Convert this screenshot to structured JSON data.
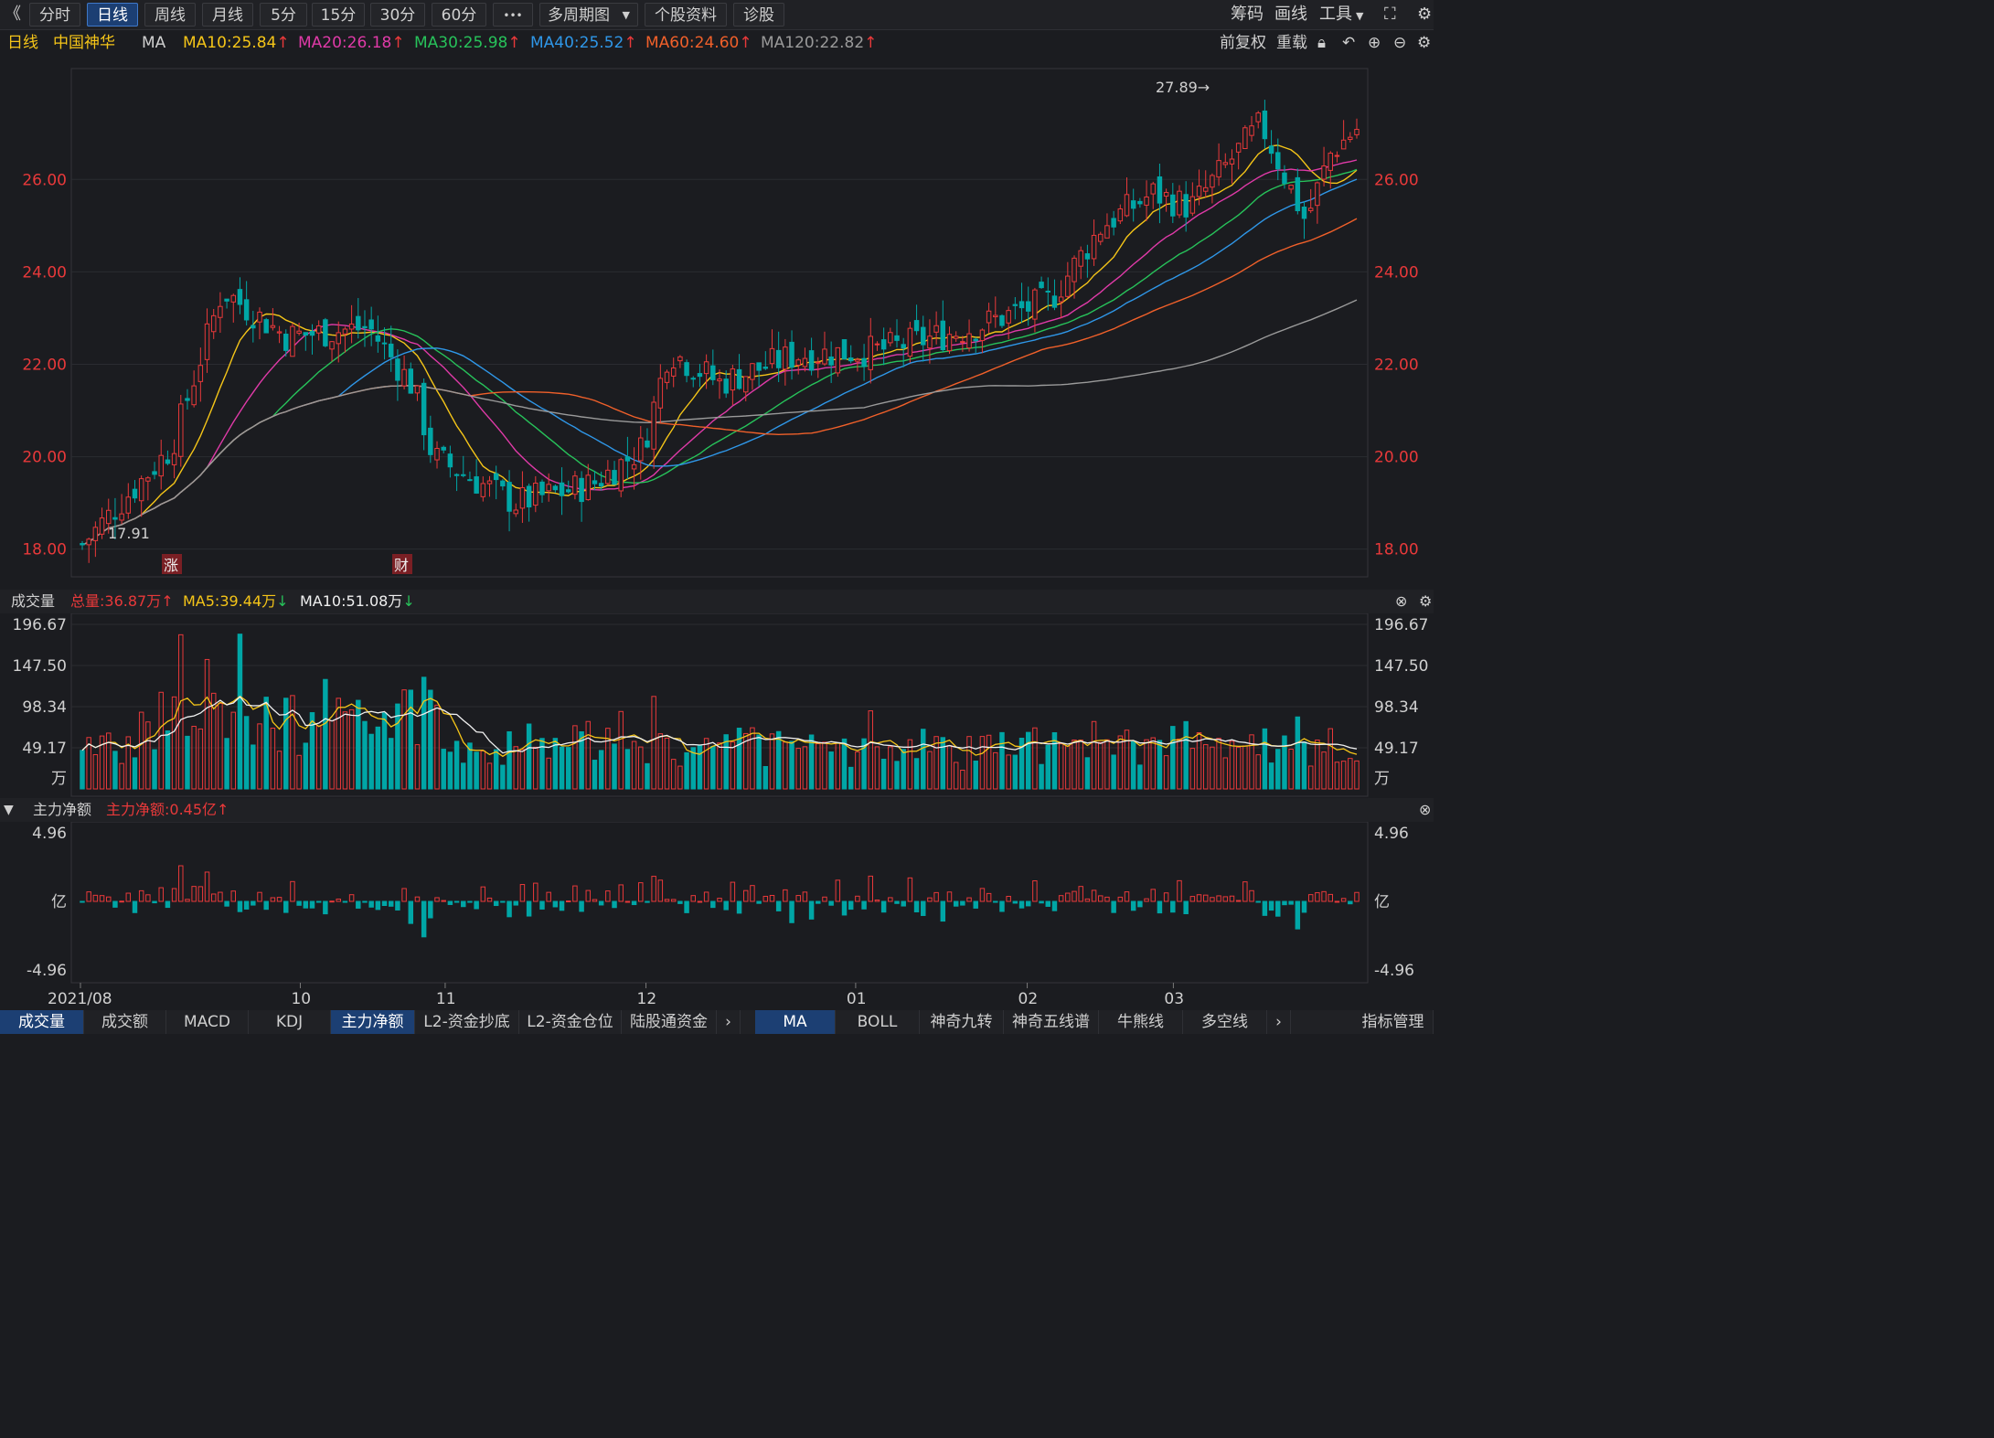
{
  "toolbar": {
    "back": "《",
    "tabs": [
      "分时",
      "日线",
      "周线",
      "月线",
      "5分",
      "15分",
      "30分",
      "60分",
      "•••",
      "多周期图",
      "个股资料",
      "诊股"
    ],
    "active_tab": "日线",
    "right_items": [
      "筹码",
      "画线",
      "工具"
    ]
  },
  "info": {
    "period": "日线",
    "stock_name": "中国神华",
    "indicator": "MA",
    "ma10": "MA10:25.84",
    "ma20": "MA20:26.18",
    "ma30": "MA30:25.98",
    "ma40": "MA40:25.52",
    "ma60": "MA60:24.60",
    "ma120": "MA120:22.82",
    "fq": "前复权",
    "reload": "重载"
  },
  "colors": {
    "up": "#e8393a",
    "down": "#00a6a6",
    "ma10": "#f5c518",
    "ma20": "#e03aa8",
    "ma30": "#27c25a",
    "ma40": "#2f97e8",
    "ma60": "#f0602a",
    "ma120": "#9a9a9a"
  },
  "price_axis": {
    "ticks": [
      "26.00",
      "24.00",
      "22.00",
      "20.00",
      "18.00"
    ]
  },
  "price_chart": {
    "high_label": "27.89→",
    "low_label": "17.91",
    "marker_zhang": "涨",
    "marker_cai": "财"
  },
  "volume": {
    "title": "成交量",
    "total": "总量:36.87万",
    "ma5": "MA5:39.44万",
    "ma10": "MA10:51.08万",
    "ticks": [
      "196.67",
      "147.50",
      "98.34",
      "49.17",
      "万"
    ]
  },
  "flow": {
    "title": "主力净额",
    "value": "主力净额:0.45亿",
    "ticks": [
      "4.96",
      "亿",
      "-4.96"
    ]
  },
  "date_axis": [
    "2021/08",
    "10",
    "11",
    "12",
    "01",
    "02",
    "03"
  ],
  "bottom_tabs": [
    "成交量",
    "成交额",
    "MACD",
    "KDJ",
    "主力净额",
    "L2-资金抄底",
    "L2-资金仓位",
    "陆股通资金"
  ],
  "bottom_tabs_active": "主力净额",
  "bottom_tabs2": [
    "MA",
    "BOLL",
    "神奇九转",
    "神奇五线谱",
    "牛熊线",
    "多空线"
  ],
  "bottom_tabs2_active": "MA",
  "manage": "指标管理",
  "chart_data": {
    "type": "candlestick",
    "seed": 7,
    "days": 195,
    "y_range": [
      17.4,
      28.4
    ],
    "anchors": [
      [
        0,
        18.1
      ],
      [
        14,
        20.2
      ],
      [
        22,
        23.6
      ],
      [
        32,
        22.6
      ],
      [
        45,
        22.8
      ],
      [
        52,
        21.5
      ],
      [
        55,
        20.0
      ],
      [
        68,
        19.0
      ],
      [
        80,
        19.4
      ],
      [
        88,
        20.2
      ],
      [
        92,
        22.3
      ],
      [
        100,
        21.6
      ],
      [
        112,
        22.2
      ],
      [
        125,
        22.3
      ],
      [
        140,
        22.8
      ],
      [
        152,
        23.4
      ],
      [
        160,
        25.0
      ],
      [
        168,
        25.7
      ],
      [
        174,
        25.4
      ],
      [
        185,
        27.2
      ],
      [
        192,
        25.1
      ],
      [
        196,
        26.6
      ],
      [
        200,
        27.1
      ]
    ],
    "volume_range": [
      0,
      196.67
    ],
    "flow_range": [
      -4.96,
      4.96
    ]
  }
}
